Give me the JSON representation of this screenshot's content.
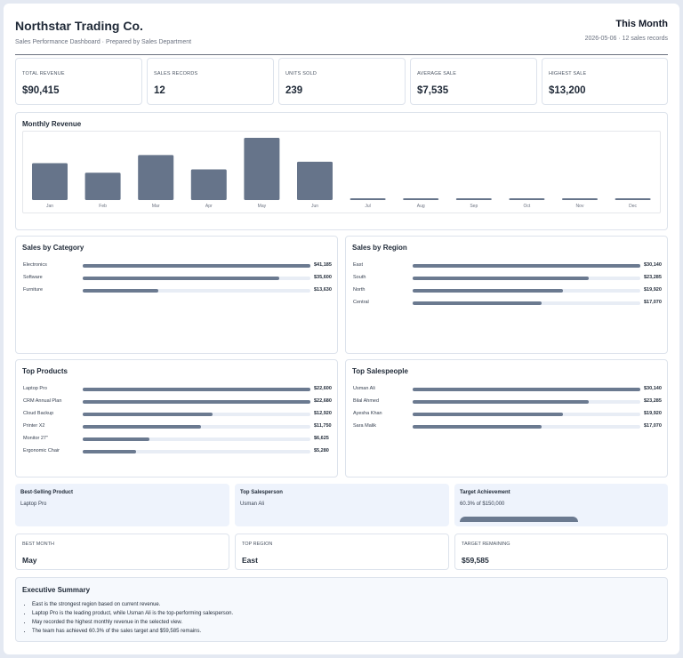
{
  "header": {
    "company": "Northstar Trading Co.",
    "subtitle": "Sales Performance Dashboard · Prepared by Sales Department",
    "period": "This Month",
    "meta": "2026-05-06 · 12 sales records"
  },
  "kpis": [
    {
      "label": "Total Revenue",
      "value": "$90,415"
    },
    {
      "label": "Sales Records",
      "value": "12"
    },
    {
      "label": "Units Sold",
      "value": "239"
    },
    {
      "label": "Average Sale",
      "value": "$7,535"
    },
    {
      "label": "Highest Sale",
      "value": "$13,200"
    }
  ],
  "monthly_revenue": {
    "title": "Monthly Revenue"
  },
  "chart_data": {
    "type": "bar",
    "title": "Monthly Revenue",
    "categories": [
      "Jan",
      "Feb",
      "Mar",
      "Apr",
      "May",
      "Jun",
      "Jul",
      "Aug",
      "Sep",
      "Oct",
      "Nov",
      "Dec"
    ],
    "values": [
      14800,
      11000,
      18100,
      12300,
      25000,
      15400,
      500,
      500,
      500,
      500,
      500,
      500
    ],
    "color": "#66748a"
  },
  "sales_by_category": {
    "title": "Sales by Category",
    "items": [
      {
        "label": "Electronics",
        "value": "$41,185",
        "fraction": 1.0
      },
      {
        "label": "Software",
        "value": "$35,600",
        "fraction": 0.865
      },
      {
        "label": "Furniture",
        "value": "$13,630",
        "fraction": 0.331
      }
    ]
  },
  "sales_by_region": {
    "title": "Sales by Region",
    "items": [
      {
        "label": "East",
        "value": "$30,140",
        "fraction": 1.0
      },
      {
        "label": "South",
        "value": "$23,285",
        "fraction": 0.773
      },
      {
        "label": "North",
        "value": "$19,920",
        "fraction": 0.661
      },
      {
        "label": "Central",
        "value": "$17,070",
        "fraction": 0.566
      }
    ]
  },
  "top_products": {
    "title": "Top Products",
    "items": [
      {
        "label": "Laptop Pro",
        "value": "$22,600",
        "fraction": 1.0
      },
      {
        "label": "CRM Annual Plan",
        "value": "$22,680",
        "fraction": 1.0
      },
      {
        "label": "Cloud Backup",
        "value": "$12,920",
        "fraction": 0.57
      },
      {
        "label": "Printer X2",
        "value": "$11,750",
        "fraction": 0.518
      },
      {
        "label": "Monitor 27\"",
        "value": "$6,625",
        "fraction": 0.292
      },
      {
        "label": "Ergonomic Chair",
        "value": "$5,280",
        "fraction": 0.233
      }
    ]
  },
  "top_salespeople": {
    "title": "Top Salespeople",
    "items": [
      {
        "label": "Usman Ali",
        "value": "$30,140",
        "fraction": 1.0
      },
      {
        "label": "Bilal Ahmed",
        "value": "$23,285",
        "fraction": 0.773
      },
      {
        "label": "Ayesha Khan",
        "value": "$19,920",
        "fraction": 0.661
      },
      {
        "label": "Sara Malik",
        "value": "$17,070",
        "fraction": 0.566
      }
    ]
  },
  "highlights": [
    {
      "title": "Best-Selling Product",
      "value": "Laptop Pro"
    },
    {
      "title": "Top Salesperson",
      "value": "Usman Ali"
    },
    {
      "title": "Target Achievement",
      "value": "60.3% of $150,000",
      "progress": 0.603
    }
  ],
  "stats": [
    {
      "label": "Best Month",
      "value": "May"
    },
    {
      "label": "Top Region",
      "value": "East"
    },
    {
      "label": "Target Remaining",
      "value": "$59,585"
    }
  ],
  "summary": {
    "title": "Executive Summary",
    "bullets": [
      "East is the strongest region based on current revenue.",
      "Laptop Pro is the leading product, while Usman Ali is the top-performing salesperson.",
      "May recorded the highest monthly revenue in the selected view.",
      "The team has achieved 60.3% of the sales target and $59,585 remains."
    ]
  }
}
